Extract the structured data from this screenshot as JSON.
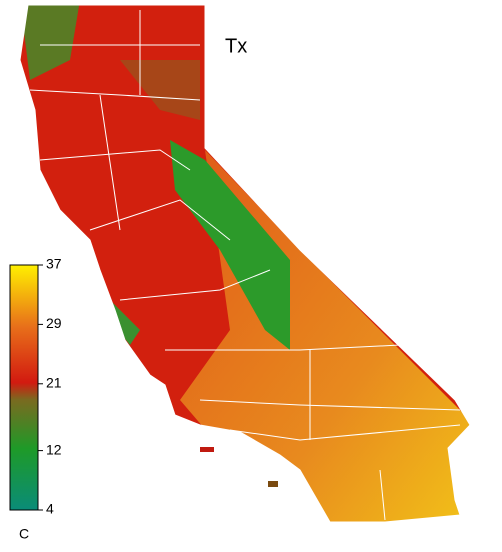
{
  "title": "Tx",
  "colorbar": {
    "range": [
      4,
      37
    ],
    "ticks": [
      4,
      12,
      21,
      29,
      37
    ],
    "unit": "C"
  }
}
